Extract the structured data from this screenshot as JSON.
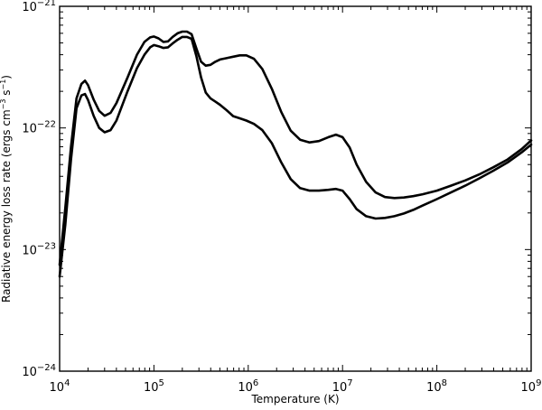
{
  "chart_data": {
    "type": "line",
    "xlabel": "Temperature (K)",
    "ylabel_parts": [
      "Radiative energy loss rate (ergs cm",
      "3",
      " s",
      "1",
      ")"
    ],
    "x_scale": "log",
    "y_scale": "log",
    "xlim": [
      10000,
      1000000000
    ],
    "ylim": [
      1e-24,
      1e-21
    ],
    "x_ticks": [
      {
        "value": 10000,
        "base": "10",
        "exp": "4"
      },
      {
        "value": 100000,
        "base": "10",
        "exp": "5"
      },
      {
        "value": 1000000,
        "base": "10",
        "exp": "6"
      },
      {
        "value": 10000000,
        "base": "10",
        "exp": "7"
      },
      {
        "value": 100000000,
        "base": "10",
        "exp": "8"
      },
      {
        "value": 1000000000,
        "base": "10",
        "exp": "9"
      }
    ],
    "y_ticks": [
      {
        "value": 1e-24,
        "base": "10",
        "exp": "−24"
      },
      {
        "value": 1e-23,
        "base": "10",
        "exp": "−23"
      },
      {
        "value": 1e-22,
        "base": "10",
        "exp": "−22"
      },
      {
        "value": 1e-21,
        "base": "10",
        "exp": "−21"
      }
    ],
    "grid": false,
    "line_color": "#000000",
    "series": [
      {
        "x": [
          10000,
          11500,
          13200,
          15100,
          17000,
          18600,
          20000,
          23000,
          26300,
          30000,
          34700,
          40000,
          52500,
          66100,
          79400,
          91200,
          100000,
          112000,
          126000,
          141000,
          158000,
          178000,
          200000,
          224000,
          251000,
          282000,
          316000,
          355000,
          398000,
          447000,
          501000,
          589000,
          692000,
          813000,
          955000,
          1150000,
          1410000,
          1780000,
          2240000,
          2820000,
          3550000,
          4470000,
          5620000,
          7080000,
          8510000,
          10000000,
          11900000,
          14100000,
          17800000,
          22400000,
          28200000,
          35500000,
          44700000,
          56200000,
          70800000,
          100000000,
          141000000,
          200000000,
          282000000,
          398000000,
          562000000,
          794000000,
          1000000000
        ],
        "y": [
          7.5e-24,
          2.2e-23,
          7e-23,
          1.75e-22,
          2.3e-22,
          2.45e-22,
          2.25e-22,
          1.7e-22,
          1.38e-22,
          1.26e-22,
          1.33e-22,
          1.6e-22,
          2.6e-22,
          4e-22,
          5.1e-22,
          5.55e-22,
          5.65e-22,
          5.45e-22,
          5.1e-22,
          5.15e-22,
          5.6e-22,
          6e-22,
          6.2e-22,
          6.2e-22,
          5.9e-22,
          4.5e-22,
          3.5e-22,
          3.25e-22,
          3.3e-22,
          3.5e-22,
          3.65e-22,
          3.75e-22,
          3.85e-22,
          3.95e-22,
          3.95e-22,
          3.7e-22,
          3.05e-22,
          2.1e-22,
          1.35e-22,
          9.5e-23,
          8e-23,
          7.6e-23,
          7.8e-23,
          8.4e-23,
          8.8e-23,
          8.4e-23,
          6.9e-23,
          5e-23,
          3.6e-23,
          2.95e-23,
          2.7e-23,
          2.65e-23,
          2.68e-23,
          2.75e-23,
          2.85e-23,
          3.05e-23,
          3.35e-23,
          3.7e-23,
          4.15e-23,
          4.75e-23,
          5.5e-23,
          6.7e-23,
          7.9e-23
        ]
      },
      {
        "x": [
          10000,
          11500,
          13200,
          15100,
          17000,
          18600,
          20000,
          23000,
          26300,
          30000,
          34700,
          40000,
          52500,
          66100,
          79400,
          91200,
          100000,
          112000,
          126000,
          141000,
          158000,
          178000,
          200000,
          224000,
          251000,
          282000,
          316000,
          355000,
          398000,
          447000,
          501000,
          589000,
          692000,
          813000,
          955000,
          1150000,
          1410000,
          1780000,
          2240000,
          2820000,
          3550000,
          4470000,
          5620000,
          7080000,
          8510000,
          10000000,
          11900000,
          14100000,
          17800000,
          22400000,
          28200000,
          35500000,
          44700000,
          56200000,
          70800000,
          100000000,
          141000000,
          200000000,
          282000000,
          398000000,
          562000000,
          794000000,
          1000000000
        ],
        "y": [
          6e-24,
          1.6e-23,
          5.5e-23,
          1.45e-22,
          1.85e-22,
          1.9e-22,
          1.7e-22,
          1.25e-22,
          1e-22,
          9.2e-23,
          9.6e-23,
          1.15e-22,
          2e-22,
          3.1e-22,
          4e-22,
          4.6e-22,
          4.8e-22,
          4.7e-22,
          4.55e-22,
          4.6e-22,
          4.95e-22,
          5.3e-22,
          5.6e-22,
          5.6e-22,
          5.4e-22,
          3.9e-22,
          2.6e-22,
          1.95e-22,
          1.75e-22,
          1.65e-22,
          1.55e-22,
          1.4e-22,
          1.25e-22,
          1.2e-22,
          1.15e-22,
          1.08e-22,
          9.6e-23,
          7.5e-23,
          5.2e-23,
          3.8e-23,
          3.2e-23,
          3.05e-23,
          3.05e-23,
          3.1e-23,
          3.15e-23,
          3.05e-23,
          2.6e-23,
          2.15e-23,
          1.88e-23,
          1.8e-23,
          1.82e-23,
          1.88e-23,
          1.98e-23,
          2.12e-23,
          2.3e-23,
          2.6e-23,
          2.95e-23,
          3.35e-23,
          3.85e-23,
          4.45e-23,
          5.2e-23,
          6.3e-23,
          7.3e-23
        ]
      }
    ]
  }
}
